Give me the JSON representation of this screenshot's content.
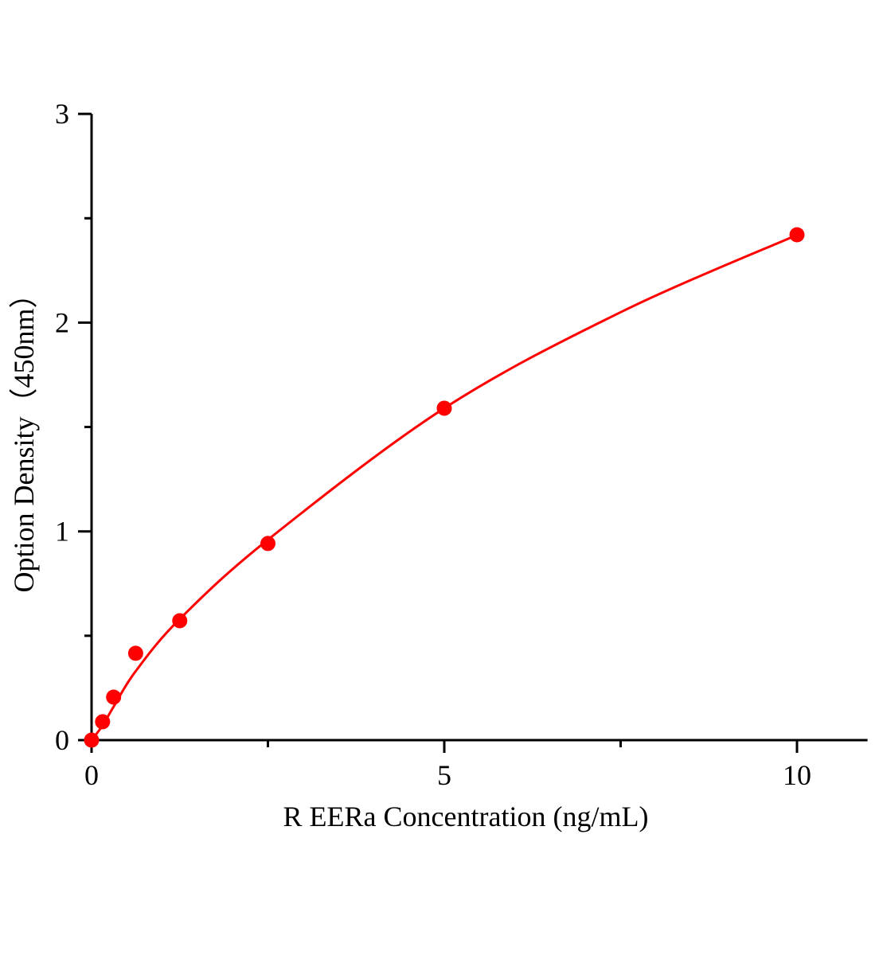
{
  "chart_data": {
    "type": "scatter",
    "title": "",
    "xlabel": "R EERa Concentration (ng/mL)",
    "ylabel": "Option Density（450nm）",
    "xlim": [
      0,
      11
    ],
    "ylim": [
      0,
      3
    ],
    "x_ticks": [
      0,
      5,
      10
    ],
    "x_tick_labels": [
      "0",
      "5",
      "10"
    ],
    "x_minor_ticks": [
      2.5,
      7.5
    ],
    "y_ticks": [
      0,
      1,
      2,
      3
    ],
    "y_tick_labels": [
      "0",
      "1",
      "2",
      "3"
    ],
    "y_minor_ticks": [
      0.5,
      1.5,
      2.5
    ],
    "grid": false,
    "color": "#ff0000",
    "points": {
      "x": [
        0,
        0.156,
        0.3125,
        0.625,
        1.25,
        2.5,
        5,
        10
      ],
      "y": [
        0,
        0.088,
        0.206,
        0.416,
        0.572,
        0.942,
        1.59,
        2.421
      ]
    },
    "fit_curve": {
      "x": [
        0,
        0.156,
        0.3125,
        0.625,
        1.25,
        2.5,
        5,
        7.5,
        10
      ],
      "y": [
        0,
        0.07,
        0.16,
        0.33,
        0.58,
        0.96,
        1.59,
        2.05,
        2.42
      ]
    }
  }
}
